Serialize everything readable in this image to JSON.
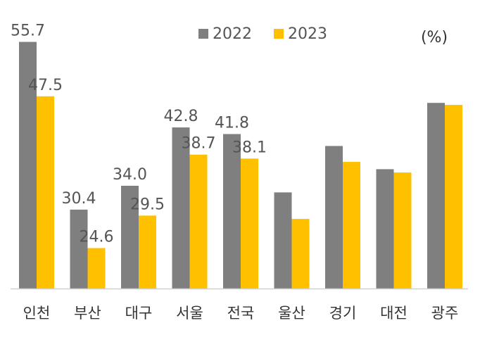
{
  "chart_data": {
    "type": "bar",
    "categories": [
      "인천",
      "부산",
      "대구",
      "서울",
      "전국",
      "울산",
      "경기",
      "대전",
      "광주"
    ],
    "series": [
      {
        "name": "2022",
        "color": "#7f7f7f",
        "values": [
          55.7,
          30.4,
          34.0,
          42.8,
          41.8,
          33.0,
          40.0,
          36.5,
          46.5
        ],
        "labels": [
          "55.7",
          "30.4",
          "34.0",
          "42.8",
          "41.8",
          "",
          "",
          "",
          ""
        ]
      },
      {
        "name": "2023",
        "color": "#ffc000",
        "values": [
          47.5,
          24.6,
          29.5,
          38.7,
          38.1,
          29.0,
          37.6,
          36.0,
          46.2
        ],
        "labels": [
          "47.5",
          "24.6",
          "29.5",
          "38.7",
          "38.1",
          "",
          "",
          "",
          ""
        ]
      }
    ],
    "unit": "(%)",
    "ylim": [
      18.5,
      56.5
    ],
    "grid": false,
    "legend_position": "top-center"
  }
}
